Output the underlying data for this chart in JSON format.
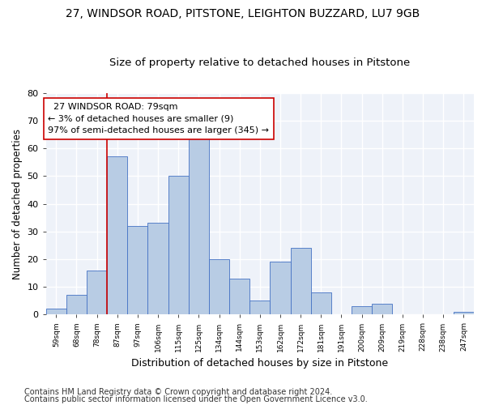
{
  "title1": "27, WINDSOR ROAD, PITSTONE, LEIGHTON BUZZARD, LU7 9GB",
  "title2": "Size of property relative to detached houses in Pitstone",
  "xlabel": "Distribution of detached houses by size in Pitstone",
  "ylabel": "Number of detached properties",
  "bar_labels": [
    "59sqm",
    "68sqm",
    "78sqm",
    "87sqm",
    "97sqm",
    "106sqm",
    "115sqm",
    "125sqm",
    "134sqm",
    "144sqm",
    "153sqm",
    "162sqm",
    "172sqm",
    "181sqm",
    "191sqm",
    "200sqm",
    "209sqm",
    "219sqm",
    "228sqm",
    "238sqm",
    "247sqm"
  ],
  "bar_values": [
    2,
    7,
    16,
    57,
    32,
    33,
    50,
    64,
    20,
    13,
    5,
    19,
    24,
    8,
    0,
    3,
    4,
    0,
    0,
    0,
    1
  ],
  "bar_color": "#b8cce4",
  "bar_edge_color": "#4472c4",
  "ylim": [
    0,
    80
  ],
  "yticks": [
    0,
    10,
    20,
    30,
    40,
    50,
    60,
    70,
    80
  ],
  "annotation_box_text": "  27 WINDSOR ROAD: 79sqm\n← 3% of detached houses are smaller (9)\n97% of semi-detached houses are larger (345) →",
  "vline_x": 2.5,
  "vline_color": "#cc0000",
  "footer1": "Contains HM Land Registry data © Crown copyright and database right 2024.",
  "footer2": "Contains public sector information licensed under the Open Government Licence v3.0.",
  "background_color": "#eef2f9",
  "grid_color": "#ffffff",
  "title1_fontsize": 10,
  "title2_fontsize": 9.5,
  "xlabel_fontsize": 9,
  "ylabel_fontsize": 8.5,
  "footer_fontsize": 7,
  "annotation_fontsize": 8
}
